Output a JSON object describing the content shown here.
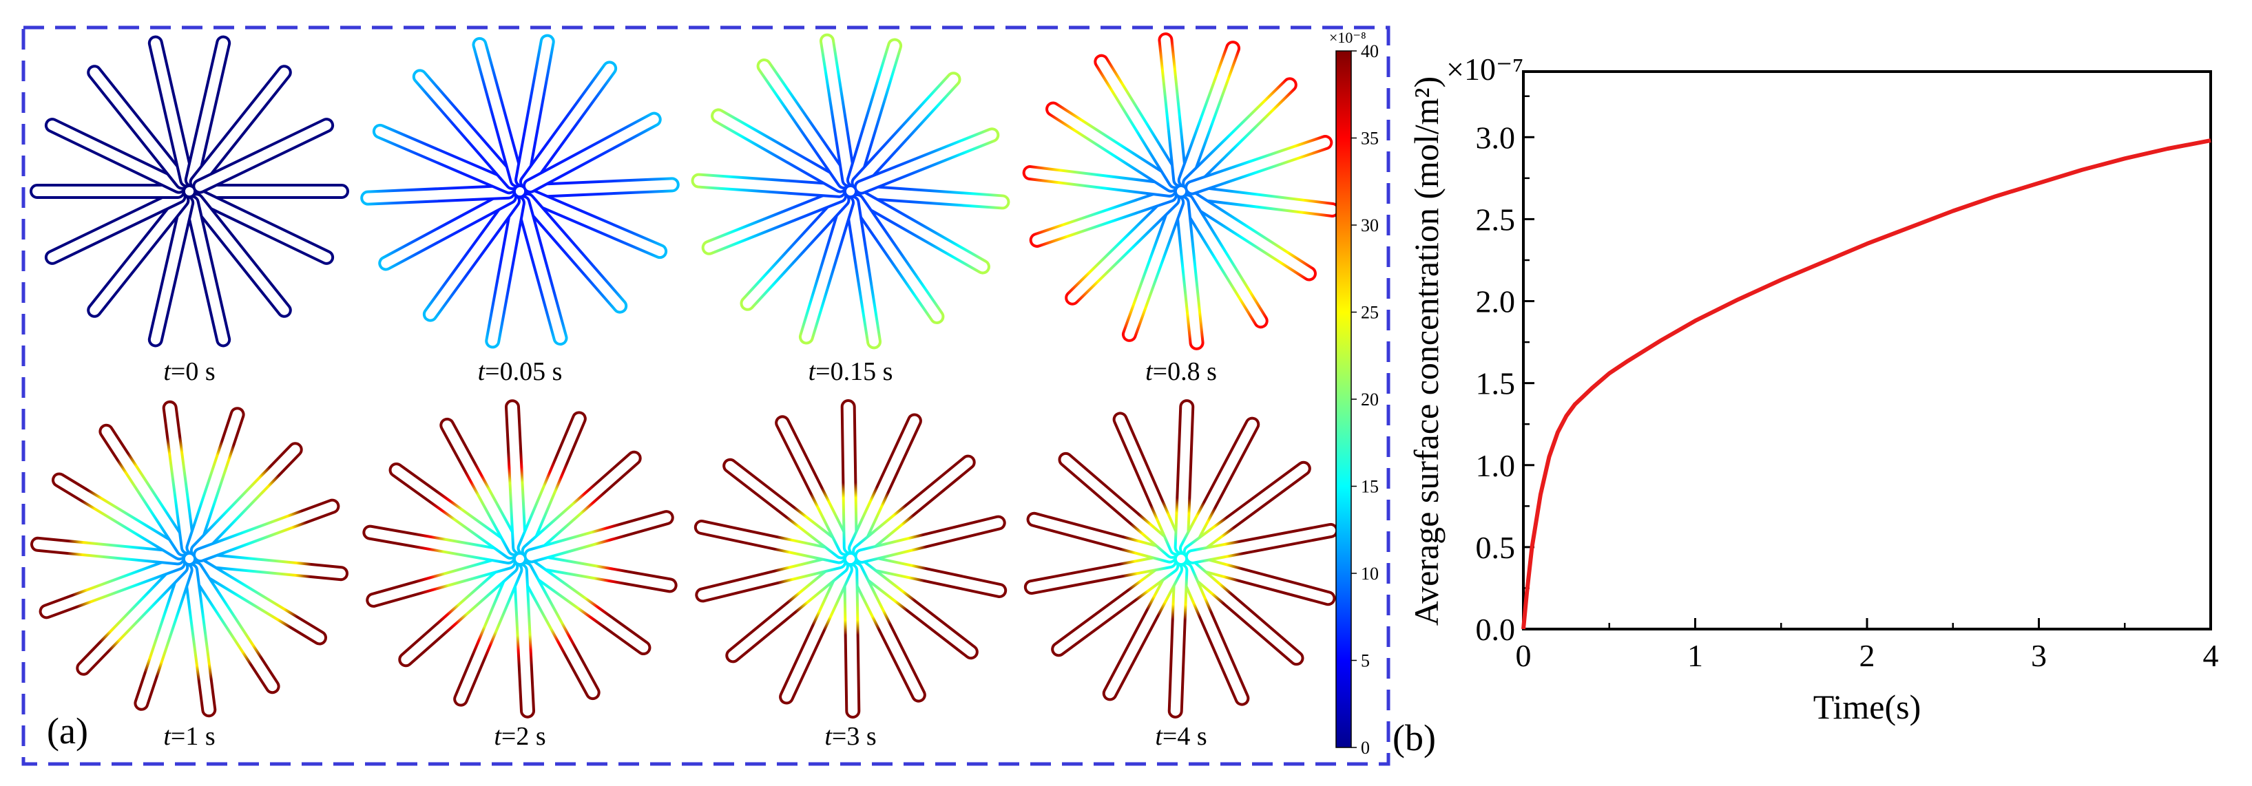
{
  "panel_a": {
    "label": "(a)",
    "frames": [
      {
        "time": "=0 s",
        "progress": 0.0
      },
      {
        "time": "=0.05 s",
        "progress": 0.1
      },
      {
        "time": "=0.15 s",
        "progress": 0.25
      },
      {
        "time": "=0.8 s",
        "progress": 0.45
      },
      {
        "time": "=1 s",
        "progress": 0.55
      },
      {
        "time": "=2 s",
        "progress": 0.72
      },
      {
        "time": "=3 s",
        "progress": 0.85
      },
      {
        "time": "=4 s",
        "progress": 0.95
      }
    ],
    "time_symbol": "t",
    "arm_count": 14,
    "colorbar": {
      "exponent_label": "×10⁻⁸",
      "ticks": [
        "0",
        "5",
        "10",
        "15",
        "20",
        "25",
        "30",
        "35",
        "40"
      ],
      "min": 0,
      "max": 40
    },
    "frame_color": "#3a3ad8"
  },
  "chart_data": {
    "type": "line",
    "panel_label": "(b)",
    "xlabel": "Time(s)",
    "ylabel": "Average surface concentration (mol/m²)",
    "y_multiplier_label": "×10⁻⁷",
    "xlim": [
      0,
      4
    ],
    "ylim": [
      0,
      3.4
    ],
    "x_ticks": [
      0,
      1,
      2,
      3,
      4
    ],
    "y_ticks": [
      "0.0",
      "0.5",
      "1.0",
      "1.5",
      "2.0",
      "2.5",
      "3.0"
    ],
    "series": [
      {
        "color": "#e81c1c",
        "x": [
          0,
          0.02,
          0.05,
          0.1,
          0.15,
          0.2,
          0.25,
          0.3,
          0.4,
          0.5,
          0.6,
          0.8,
          1.0,
          1.25,
          1.5,
          1.75,
          2.0,
          2.25,
          2.5,
          2.75,
          3.0,
          3.25,
          3.5,
          3.75,
          4.0
        ],
        "y": [
          0,
          0.22,
          0.5,
          0.82,
          1.05,
          1.2,
          1.3,
          1.37,
          1.47,
          1.56,
          1.63,
          1.76,
          1.88,
          2.01,
          2.13,
          2.24,
          2.35,
          2.45,
          2.55,
          2.64,
          2.72,
          2.8,
          2.87,
          2.93,
          2.98
        ]
      }
    ]
  }
}
